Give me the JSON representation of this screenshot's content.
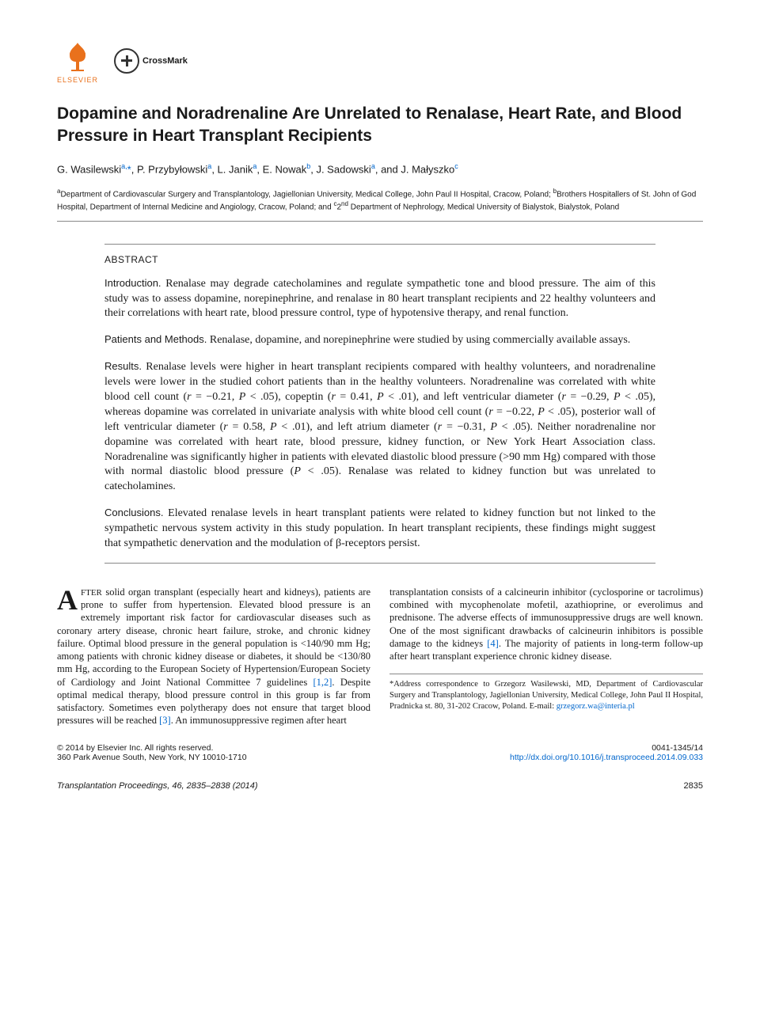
{
  "logos": {
    "elsevier": "ELSEVIER",
    "crossmark": "CrossMark"
  },
  "title": "Dopamine and Noradrenaline Are Unrelated to Renalase, Heart Rate, and Blood Pressure in Heart Transplant Recipients",
  "authors_html": "G. Wasilewski<sup>a,</sup><span class=\"star\">*</span>, P. Przybyłowski<sup>a</sup>, L. Janik<sup>a</sup>, E. Nowak<sup>b</sup>, J. Sadowski<sup>a</sup>, and J. Małyszko<sup>c</sup>",
  "affiliations_html": "<sup>a</sup>Department of Cardiovascular Surgery and Transplantology, Jagiellonian University, Medical College, John Paul II Hospital, Cracow, Poland; <sup>b</sup>Brothers Hospitallers of St. John of God Hospital, Department of Internal Medicine and Angiology, Cracow, Poland; and <sup>c</sup>2<sup>nd</sup> Department of Nephrology, Medical University of Bialystok, Bialystok, Poland",
  "abstract": {
    "heading": "ABSTRACT",
    "sections": [
      {
        "label": "Introduction.",
        "text": "Renalase may degrade catecholamines and regulate sympathetic tone and blood pressure. The aim of this study was to assess dopamine, norepinephrine, and renalase in 80 heart transplant recipients and 22 healthy volunteers and their correlations with heart rate, blood pressure control, type of hypotensive therapy, and renal function."
      },
      {
        "label": "Patients and Methods.",
        "text": "Renalase, dopamine, and norepinephrine were studied by using commercially available assays."
      },
      {
        "label": "Results.",
        "text_html": "Renalase levels were higher in heart transplant recipients compared with healthy volunteers, and noradrenaline levels were lower in the studied cohort patients than in the healthy volunteers. Noradrenaline was correlated with white blood cell count (<span class=\"italic\">r</span> = −0.21, <span class=\"italic\">P</span> &lt; .05), copeptin (<span class=\"italic\">r</span> = 0.41, <span class=\"italic\">P</span> &lt; .01), and left ventricular diameter (<span class=\"italic\">r</span> = −0.29, <span class=\"italic\">P</span> &lt; .05), whereas dopamine was correlated in univariate analysis with white blood cell count (<span class=\"italic\">r</span> = −0.22, <span class=\"italic\">P</span> &lt; .05), posterior wall of left ventricular diameter (<span class=\"italic\">r</span> = 0.58, <span class=\"italic\">P</span> &lt; .01), and left atrium diameter (<span class=\"italic\">r</span> = −0.31, <span class=\"italic\">P</span> &lt; .05). Neither noradrenaline nor dopamine was correlated with heart rate, blood pressure, kidney function, or New York Heart Association class. Noradrenaline was significantly higher in patients with elevated diastolic blood pressure (&gt;90 mm Hg) compared with those with normal diastolic blood pressure (<span class=\"italic\">P</span> &lt; .05). Renalase was related to kidney function but was unrelated to catecholamines."
      },
      {
        "label": "Conclusions.",
        "text": "Elevated renalase levels in heart transplant patients were related to kidney function but not linked to the sympathetic nervous system activity in this study population. In heart transplant recipients, these findings might suggest that sympathetic denervation and the modulation of β-receptors persist."
      }
    ]
  },
  "body": {
    "col1_html": "<span class=\"dropcap\">A</span><span class=\"smallcaps\">FTER</span> solid organ transplant (especially heart and kidneys), patients are prone to suffer from hypertension. Elevated blood pressure is an extremely important risk factor for cardiovascular diseases such as coronary artery disease, chronic heart failure, stroke, and chronic kidney failure. Optimal blood pressure in the general population is &lt;140/90 mm Hg; among patients with chronic kidney disease or diabetes, it should be &lt;130/80 mm Hg, according to the European Society of Hypertension/European Society of Cardiology and Joint National Committee 7 guidelines <span class=\"ref-link\">[1,2]</span>. Despite optimal medical therapy, blood pressure control in this group is far from satisfactory. Sometimes even polytherapy does not ensure that target blood pressures will be reached <span class=\"ref-link\">[3]</span>. An immunosuppressive regimen after heart",
    "col2_html": "transplantation consists of a calcineurin inhibitor (cyclosporine or tacrolimus) combined with mycophenolate mofetil, azathioprine, or everolimus and prednisone. The adverse effects of immunosuppressive drugs are well known. One of the most significant drawbacks of calcineurin inhibitors is possible damage to the kidneys <span class=\"ref-link\">[4]</span>. The majority of patients in long-term follow-up after heart transplant experience chronic kidney disease."
  },
  "correspondence_html": "*Address correspondence to Grzegorz Wasilewski, MD, Department of Cardiovascular Surgery and Transplantology, Jagiellonian University, Medical College, John Paul II Hospital, Pradnicka st. 80, 31-202 Cracow, Poland. E-mail: <span class=\"ref-link\">grzegorz.wa@interia.pl</span>",
  "footer": {
    "left1": "© 2014 by Elsevier Inc. All rights reserved.",
    "left2": "360 Park Avenue South, New York, NY 10010-1710",
    "right1": "0041-1345/14",
    "doi": "http://dx.doi.org/10.1016/j.transproceed.2014.09.033"
  },
  "page_foot": {
    "citation": "Transplantation Proceedings, 46, 2835–2838 (2014)",
    "page": "2835"
  },
  "colors": {
    "link": "#0066cc",
    "elsevier": "#e9711c",
    "text": "#1a1a1a",
    "rule": "#888888"
  }
}
